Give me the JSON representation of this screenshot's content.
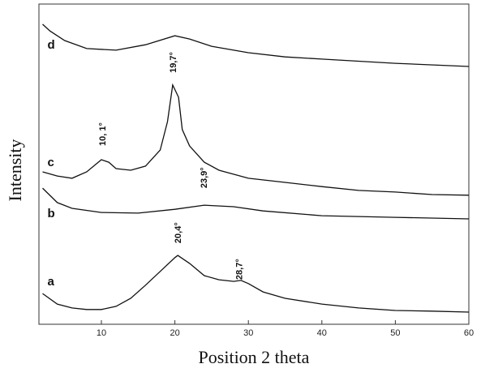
{
  "chart_data": {
    "type": "line",
    "xlabel": "Position 2 theta",
    "ylabel": "Intensity",
    "xlim": [
      1.5,
      60
    ],
    "xticks": [
      10,
      20,
      30,
      40,
      50,
      60
    ],
    "ylim": [
      0,
      100
    ],
    "series": [
      {
        "name": "a",
        "color": "#111111",
        "x": [
          2,
          4,
          6,
          8,
          10,
          12,
          14,
          16,
          18,
          20,
          20.4,
          22,
          24,
          26,
          28,
          29,
          30,
          32,
          35,
          40,
          45,
          50,
          55,
          60
        ],
        "values": [
          9.6,
          6.3,
          5.1,
          4.6,
          4.6,
          5.6,
          8.1,
          12.2,
          16.5,
          20.8,
          21.5,
          19.0,
          15.2,
          13.9,
          13.4,
          13.7,
          12.7,
          10.1,
          8.1,
          6.3,
          5.1,
          4.3,
          4.1,
          3.8
        ]
      },
      {
        "name": "b",
        "color": "#111111",
        "x": [
          2,
          4,
          6,
          10,
          15,
          20,
          24,
          28,
          32,
          40,
          50,
          60
        ],
        "values": [
          42.5,
          38.0,
          36.2,
          34.9,
          34.7,
          35.9,
          37.2,
          36.7,
          35.4,
          33.9,
          33.4,
          32.9
        ]
      },
      {
        "name": "c",
        "color": "#111111",
        "x": [
          2,
          4,
          6,
          8,
          10,
          11,
          12,
          14,
          16,
          18,
          19,
          19.7,
          20.5,
          21,
          22,
          24,
          26,
          30,
          35,
          40,
          45,
          50,
          55,
          60
        ],
        "values": [
          47.6,
          46.3,
          45.6,
          47.6,
          51.4,
          50.6,
          48.6,
          48.1,
          49.4,
          54.4,
          63.3,
          74.7,
          70.9,
          60.8,
          55.7,
          50.6,
          48.1,
          45.6,
          44.3,
          43.0,
          41.8,
          41.3,
          40.5,
          40.3
        ]
      },
      {
        "name": "d",
        "color": "#111111",
        "x": [
          2,
          3,
          5,
          8,
          12,
          16,
          20,
          22,
          25,
          30,
          35,
          40,
          50,
          60
        ],
        "values": [
          93.7,
          91.6,
          88.6,
          86.1,
          85.6,
          87.3,
          90.1,
          89.1,
          86.8,
          84.8,
          83.5,
          82.8,
          81.5,
          80.5
        ]
      }
    ],
    "annotations": [
      {
        "text": "10, 1°",
        "x": 10.1,
        "y": 55.7
      },
      {
        "text": "19,7°",
        "x": 19.7,
        "y": 78.5
      },
      {
        "text": "23,9°",
        "x": 23.9,
        "y": 42.5
      },
      {
        "text": "20,4°",
        "x": 20.4,
        "y": 25.3
      },
      {
        "text": "28,7°",
        "x": 28.7,
        "y": 13.9
      }
    ]
  }
}
